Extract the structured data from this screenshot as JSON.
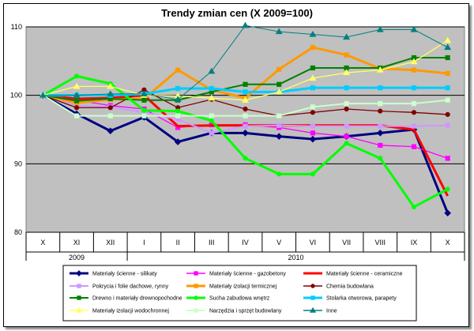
{
  "chart_data": {
    "type": "line",
    "title": "Trendy zmian cen (X 2009=100)",
    "xlabel": "",
    "ylabel": "",
    "categories": [
      "X",
      "XI",
      "XII",
      "I",
      "II",
      "III",
      "IV",
      "V",
      "VI",
      "VII",
      "VIII",
      "IX",
      "X"
    ],
    "groups": [
      {
        "label": "2009",
        "span": [
          0,
          2
        ]
      },
      {
        "label": "2010",
        "span": [
          3,
          12
        ]
      }
    ],
    "ylim": [
      80,
      110
    ],
    "yticks": [
      80,
      90,
      100,
      110
    ],
    "grid": true,
    "legend_position": "bottom",
    "series": [
      {
        "name": "Materiały ścienne - silikaty",
        "color": "#000080",
        "marker": "diamond",
        "width": 3,
        "values": [
          100,
          97.3,
          94.8,
          96.8,
          93.2,
          94.5,
          94.5,
          94.0,
          93.6,
          94.0,
          94.5,
          95.0,
          82.8
        ]
      },
      {
        "name": "Materiały ścienne - gazobetony",
        "color": "#ff00ff",
        "marker": "square",
        "width": 1.3,
        "values": [
          100,
          99.3,
          98.5,
          98.0,
          95.3,
          95.7,
          95.7,
          95.3,
          94.5,
          94.0,
          92.7,
          92.5,
          90.8
        ]
      },
      {
        "name": "Materiały ścienne - ceramiczne",
        "color": "#ff0000",
        "marker": "none",
        "width": 3,
        "values": [
          100,
          99.5,
          99.6,
          100.0,
          95.5,
          95.6,
          95.6,
          95.6,
          95.6,
          95.6,
          95.6,
          95.0,
          85.3
        ]
      },
      {
        "name": "Pokrycia i folie dachowe, rynny",
        "color": "#cc99ff",
        "marker": "square",
        "width": 2,
        "values": [
          100,
          98.5,
          98.3,
          97.5,
          96.5,
          94.5,
          95.5,
          95.6,
          95.5,
          95.5,
          95.5,
          95.5,
          95.6
        ]
      },
      {
        "name": "Materiały izolacji termicznej",
        "color": "#ff9900",
        "marker": "square",
        "width": 3,
        "values": [
          100,
          98.9,
          99.4,
          99.5,
          103.7,
          100.8,
          99.6,
          103.8,
          107.0,
          105.9,
          103.9,
          103.7,
          103.2
        ]
      },
      {
        "name": "Chemia budowlana",
        "color": "#800000",
        "marker": "circle",
        "width": 1.3,
        "values": [
          100,
          98.2,
          98.2,
          100.8,
          98.2,
          99.4,
          98.0,
          97.0,
          97.5,
          98.0,
          97.7,
          97.5,
          97.2
        ]
      },
      {
        "name": "Drewno i materiały drewnopochodne",
        "color": "#008000",
        "marker": "square",
        "width": 2,
        "values": [
          100,
          99.2,
          99.5,
          99.3,
          99.3,
          100.5,
          101.6,
          101.6,
          104.0,
          104.0,
          104.0,
          105.5,
          105.5
        ]
      },
      {
        "name": "Sucha zabudowa wnętrz",
        "color": "#00ff00",
        "marker": "circle",
        "width": 3,
        "values": [
          100,
          102.8,
          101.7,
          97.8,
          97.7,
          96.3,
          90.8,
          88.5,
          88.5,
          93.0,
          90.8,
          83.7,
          86.3
        ]
      },
      {
        "name": "Stolarka otworowa, parapety",
        "color": "#00ccff",
        "marker": "square",
        "width": 3,
        "values": [
          100,
          100.0,
          100.0,
          100.2,
          101.0,
          101.0,
          100.5,
          100.5,
          101.1,
          101.1,
          101.1,
          101.1,
          101.1
        ]
      },
      {
        "name": "Materiały izolacji wodochronnej",
        "color": "#ffff66",
        "marker": "triangle",
        "width": 1.3,
        "values": [
          100,
          101.3,
          101.3,
          100.0,
          99.9,
          99.6,
          99.3,
          100.5,
          102.5,
          103.3,
          103.7,
          104.9,
          108.0
        ]
      },
      {
        "name": "Narzędzia i sprzęt budowlany",
        "color": "#ccffcc",
        "marker": "square",
        "width": 2,
        "values": [
          100,
          97.0,
          97.0,
          97.0,
          97.0,
          97.0,
          97.0,
          97.0,
          98.3,
          98.8,
          98.8,
          98.8,
          99.3
        ]
      },
      {
        "name": "Inne",
        "color": "#008080",
        "marker": "triangle",
        "width": 1,
        "values": [
          100,
          100.0,
          100.2,
          100.2,
          99.4,
          103.5,
          110.2,
          109.3,
          108.9,
          108.5,
          109.6,
          109.6,
          107.0
        ]
      }
    ]
  }
}
